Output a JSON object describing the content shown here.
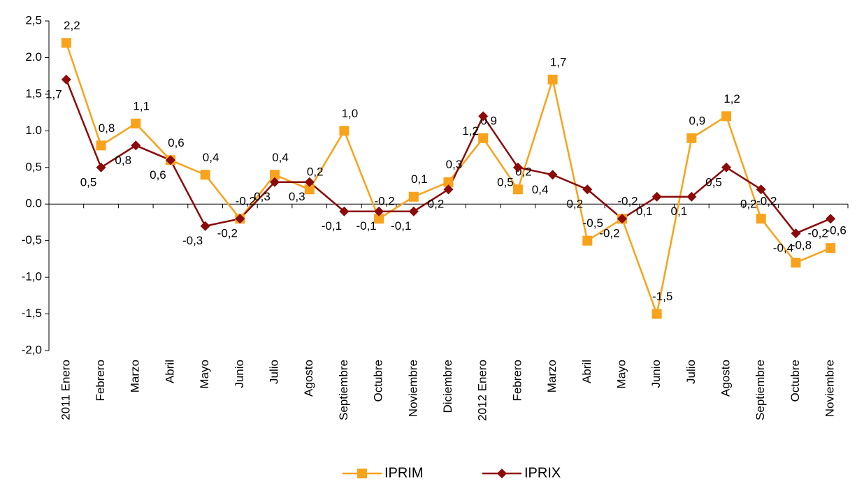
{
  "chart_data": {
    "type": "line",
    "categories": [
      "2011 Enero",
      "Febrero",
      "Marzo",
      "Abril",
      "Mayo",
      "Junio",
      "Julio",
      "Agosto",
      "Septiembre",
      "Octubre",
      "Noviembre",
      "Diciembre",
      "2012 Enero",
      "Febrero",
      "Marzo",
      "Abril",
      "Mayo",
      "Junio",
      "Julio",
      "Agosto",
      "Septiembre",
      "Octubre",
      "Noviembre"
    ],
    "series": [
      {
        "name": "IPRIM",
        "color": "#F9A21B",
        "marker": "square",
        "values": [
          2.2,
          0.8,
          1.1,
          0.6,
          0.4,
          -0.2,
          0.4,
          0.2,
          1.0,
          -0.2,
          0.1,
          0.3,
          0.9,
          0.2,
          1.7,
          -0.5,
          -0.2,
          -1.5,
          0.9,
          1.2,
          -0.2,
          -0.8,
          -0.6
        ],
        "value_labels": [
          "2,2",
          "0,8",
          "1,1",
          "0,6",
          "0,4",
          "-0,2",
          "0,4",
          "0,2",
          "1,0",
          "-0,2",
          "0,1",
          "0,3",
          "0,9",
          "0,2",
          "1,7",
          "-0,5",
          "-0,2",
          "-1,5",
          "0,9",
          "1,2",
          "-0,2",
          "-0,8",
          "-0,6"
        ]
      },
      {
        "name": "IPRIX",
        "color": "#8B0A0A",
        "marker": "diamond",
        "values": [
          1.7,
          0.5,
          0.8,
          0.6,
          -0.3,
          -0.2,
          0.3,
          0.3,
          -0.1,
          -0.1,
          -0.1,
          0.2,
          1.2,
          0.5,
          0.4,
          0.2,
          -0.2,
          0.1,
          0.1,
          0.5,
          0.2,
          -0.4,
          -0.2
        ],
        "value_labels": [
          "1,7",
          "0,5",
          "0,8",
          "0,6",
          "-0,3",
          "-0,2",
          "0,3",
          "0,3",
          "-0,1",
          "-0,1",
          "-0,1",
          "0,2",
          "1,2",
          "0,5",
          "0,4",
          "0,2",
          "-0,2",
          "0,1",
          "0,1",
          "0,5",
          "0,2",
          "-0,4",
          "-0,2"
        ]
      }
    ],
    "ylim": [
      -2.0,
      2.5
    ],
    "yticks": [
      {
        "value": -2.0,
        "label": "-2,0"
      },
      {
        "value": -1.5,
        "label": "-1,5"
      },
      {
        "value": -1.0,
        "label": "-1,0"
      },
      {
        "value": -0.5,
        "label": "-0,5"
      },
      {
        "value": 0.0,
        "label": "0.0"
      },
      {
        "value": 0.5,
        "label": "0,5"
      },
      {
        "value": 1.0,
        "label": "1.0"
      },
      {
        "value": 1.5,
        "label": "1,5"
      },
      {
        "value": 2.0,
        "label": "2.0"
      },
      {
        "value": 2.5,
        "label": "2,5"
      }
    ],
    "grid": false,
    "legend": "bottom"
  }
}
